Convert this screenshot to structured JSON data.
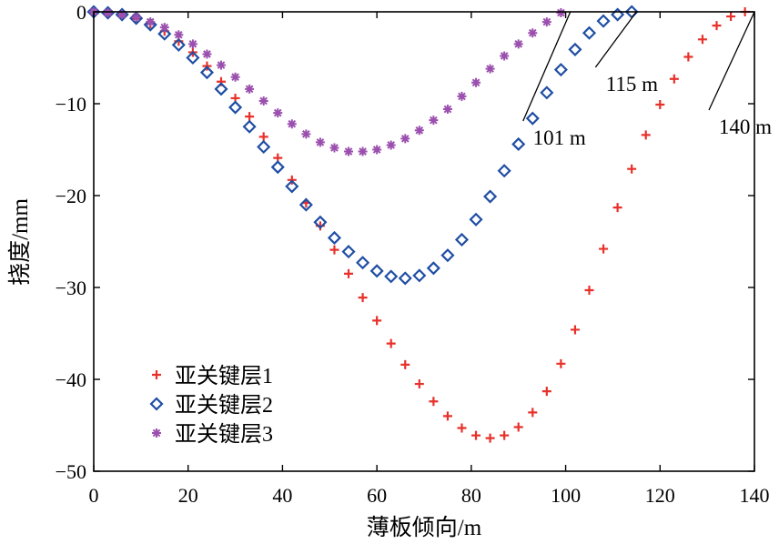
{
  "chart_data": {
    "type": "scatter",
    "xlabel": "薄板倾向/m",
    "ylabel": "挠度/mm",
    "xlim": [
      0,
      140
    ],
    "ylim": [
      -50,
      0
    ],
    "xticks": [
      "0",
      "20",
      "40",
      "60",
      "80",
      "100",
      "120",
      "140"
    ],
    "yticks": [
      "0",
      "−10",
      "−20",
      "−30",
      "−40",
      "−50"
    ],
    "grid": false,
    "legend_position": "bottom-left",
    "series": [
      {
        "name": "亚关键层1",
        "marker": "plus",
        "color": "#e8312a",
        "x": [
          0,
          3,
          6,
          9,
          12,
          15,
          18,
          21,
          24,
          27,
          30,
          33,
          36,
          39,
          42,
          45,
          48,
          51,
          54,
          57,
          60,
          63,
          66,
          69,
          72,
          75,
          78,
          81,
          84,
          87,
          90,
          93,
          96,
          99,
          102,
          105,
          108,
          111,
          114,
          117,
          120,
          123,
          126,
          129,
          132,
          135,
          138
        ],
        "y": [
          0,
          -0.1,
          -0.3,
          -0.7,
          -1.3,
          -2.1,
          -3.2,
          -4.4,
          -5.9,
          -7.6,
          -9.4,
          -11.4,
          -13.6,
          -15.9,
          -18.3,
          -20.8,
          -23.3,
          -25.9,
          -28.5,
          -31.1,
          -33.6,
          -36.1,
          -38.4,
          -40.5,
          -42.4,
          -44.0,
          -45.3,
          -46.1,
          -46.4,
          -46.1,
          -45.2,
          -43.6,
          -41.3,
          -38.3,
          -34.6,
          -30.3,
          -25.8,
          -21.3,
          -17.1,
          -13.4,
          -10.1,
          -7.3,
          -4.9,
          -3.0,
          -1.5,
          -0.5,
          0
        ]
      },
      {
        "name": "亚关键层2",
        "marker": "diamond",
        "color": "#1f4ea3",
        "x": [
          0,
          3,
          6,
          9,
          12,
          15,
          18,
          21,
          24,
          27,
          30,
          33,
          36,
          39,
          42,
          45,
          48,
          51,
          54,
          57,
          60,
          63,
          66,
          69,
          72,
          75,
          78,
          81,
          84,
          87,
          90,
          93,
          96,
          99,
          102,
          105,
          108,
          111,
          114
        ],
        "y": [
          0,
          -0.1,
          -0.3,
          -0.7,
          -1.4,
          -2.4,
          -3.6,
          -5.0,
          -6.6,
          -8.4,
          -10.4,
          -12.5,
          -14.7,
          -16.9,
          -19.0,
          -21.0,
          -22.9,
          -24.6,
          -26.1,
          -27.3,
          -28.2,
          -28.8,
          -29.0,
          -28.7,
          -27.9,
          -26.5,
          -24.8,
          -22.6,
          -20.1,
          -17.3,
          -14.4,
          -11.6,
          -8.8,
          -6.3,
          -4.1,
          -2.3,
          -1.0,
          -0.3,
          0
        ]
      },
      {
        "name": "亚关键层3",
        "marker": "star",
        "color": "#9b4fae",
        "x": [
          0,
          3,
          6,
          9,
          12,
          15,
          18,
          21,
          24,
          27,
          30,
          33,
          36,
          39,
          42,
          45,
          48,
          51,
          54,
          57,
          60,
          63,
          66,
          69,
          72,
          75,
          78,
          81,
          84,
          87,
          90,
          93,
          96,
          99
        ],
        "y": [
          0,
          -0.1,
          -0.3,
          -0.6,
          -1.1,
          -1.7,
          -2.5,
          -3.5,
          -4.6,
          -5.8,
          -7.1,
          -8.4,
          -9.7,
          -11.0,
          -12.2,
          -13.3,
          -14.2,
          -14.8,
          -15.2,
          -15.2,
          -15.0,
          -14.5,
          -13.8,
          -12.9,
          -11.8,
          -10.6,
          -9.2,
          -7.7,
          -6.2,
          -4.8,
          -3.5,
          -2.3,
          -1.1,
          -0.1
        ]
      }
    ],
    "annotations": [
      {
        "text": "101 m",
        "x": 101,
        "y": 0
      },
      {
        "text": "115 m",
        "x": 115,
        "y": 0
      },
      {
        "text": "140 m",
        "x": 140,
        "y": 0
      }
    ]
  }
}
